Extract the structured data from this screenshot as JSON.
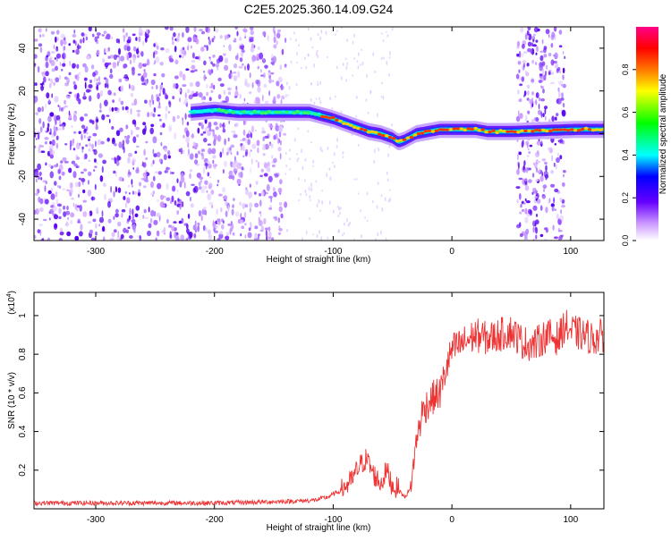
{
  "title": "C2E5.2025.360.14.09.G24",
  "chart_data": [
    {
      "type": "heatmap",
      "xlabel": "Height of straight line (km)",
      "ylabel": "Frequency (Hz)",
      "xlim": [
        -352,
        128
      ],
      "ylim": [
        -50,
        50
      ],
      "x_ticks": [
        -300,
        -200,
        -100,
        0,
        100
      ],
      "x_tick_labels": [
        "-300",
        "-200",
        "-100",
        "0",
        "100"
      ],
      "y_ticks": [
        -40,
        -20,
        0,
        20,
        40
      ],
      "y_tick_labels": [
        "-40",
        "-20",
        "0",
        "20",
        "40"
      ],
      "colorbar": {
        "label": "Normalized spectral amplitude",
        "range": [
          0,
          1
        ],
        "ticks": [
          0.0,
          0.2,
          0.4,
          0.6,
          0.8
        ],
        "tick_labels": [
          "0.0",
          "0.2",
          "0.4",
          "0.6",
          "0.8"
        ],
        "colors": [
          "#ffffff",
          "#cc99ff",
          "#6600ff",
          "#0000ff",
          "#00ffff",
          "#00ff00",
          "#ffff00",
          "#ff7700",
          "#ff0000",
          "#ff0088"
        ]
      },
      "signal_trace": {
        "x": [
          -220,
          -200,
          -180,
          -160,
          -140,
          -120,
          -100,
          -90,
          -80,
          -70,
          -60,
          -50,
          -45,
          -40,
          -30,
          -20,
          -10,
          0,
          10,
          20,
          30,
          40,
          50,
          105,
          128
        ],
        "y": [
          10,
          11,
          10,
          10,
          10,
          10,
          7,
          5,
          3,
          1,
          0,
          -2,
          -4,
          -3,
          0,
          1,
          2,
          2,
          2,
          2,
          1,
          1,
          1,
          2,
          2
        ]
      },
      "noise_regions": [
        [
          -352,
          -140
        ],
        [
          55,
          95
        ]
      ]
    },
    {
      "type": "line",
      "xlabel": "Height of straight line (km)",
      "ylabel": "SNR (10 * v/v)",
      "y_scale_label": "(x10",
      "y_scale_exp": "4",
      "xlim": [
        -352,
        128
      ],
      "ylim": [
        0,
        1.12
      ],
      "x_ticks": [
        -300,
        -200,
        -100,
        0,
        100
      ],
      "x_tick_labels": [
        "-300",
        "-200",
        "-100",
        "0",
        "100"
      ],
      "y_ticks": [
        0.2,
        0.4,
        0.6,
        0.8,
        1.0
      ],
      "y_tick_labels": [
        "0.2",
        "0.4",
        "0.6",
        "0.8",
        "1"
      ],
      "series": [
        {
          "name": "SNR",
          "color": "#ee3333",
          "x": [
            -352,
            -300,
            -250,
            -200,
            -160,
            -130,
            -115,
            -105,
            -95,
            -85,
            -78,
            -72,
            -66,
            -60,
            -55,
            -50,
            -45,
            -40,
            -35,
            -30,
            -25,
            -20,
            -15,
            -10,
            -5,
            0,
            10,
            20,
            30,
            40,
            50,
            60,
            70,
            80,
            90,
            95,
            100,
            110,
            120,
            128
          ],
          "y": [
            0.03,
            0.03,
            0.03,
            0.03,
            0.035,
            0.04,
            0.045,
            0.06,
            0.09,
            0.14,
            0.22,
            0.26,
            0.18,
            0.13,
            0.2,
            0.12,
            0.1,
            0.06,
            0.1,
            0.35,
            0.5,
            0.55,
            0.58,
            0.6,
            0.72,
            0.82,
            0.86,
            0.9,
            0.88,
            0.9,
            0.92,
            0.86,
            0.85,
            0.9,
            0.88,
            0.95,
            0.92,
            0.9,
            0.88,
            0.9
          ]
        }
      ]
    }
  ]
}
